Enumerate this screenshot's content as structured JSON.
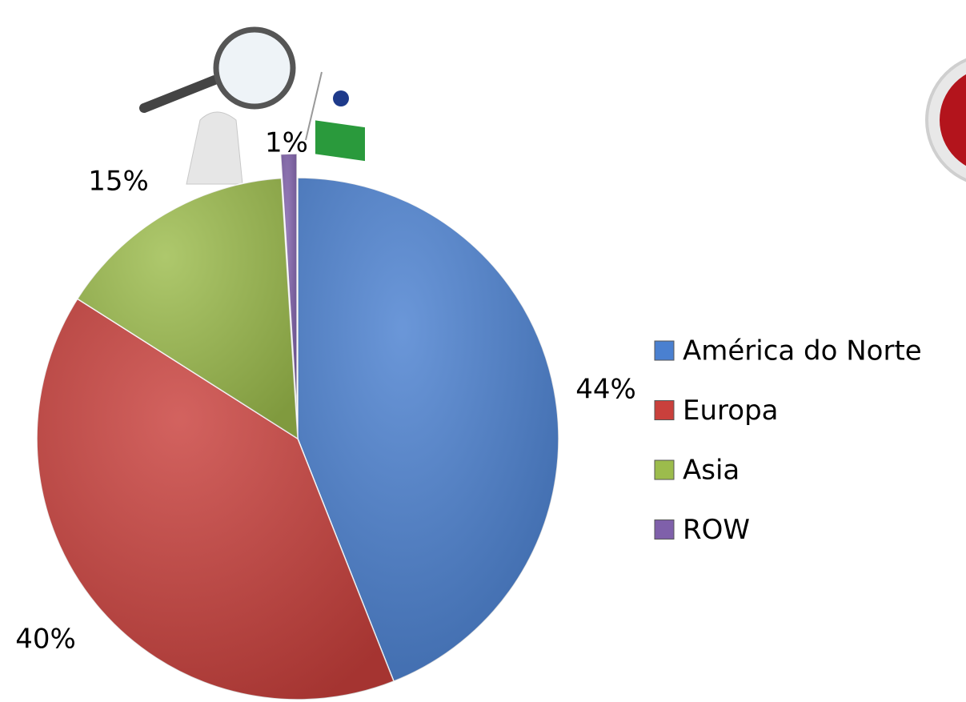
{
  "chart_data": {
    "type": "pie",
    "categories": [
      "América do Norte",
      "Europa",
      "Asia",
      "ROW"
    ],
    "values": [
      44,
      40,
      15,
      1
    ],
    "value_labels": [
      "44%",
      "40%",
      "15%",
      "1%"
    ],
    "colors": [
      "#4a80d0",
      "#c9403c",
      "#9cbc4c",
      "#7f60aa"
    ],
    "legend": "right"
  }
}
